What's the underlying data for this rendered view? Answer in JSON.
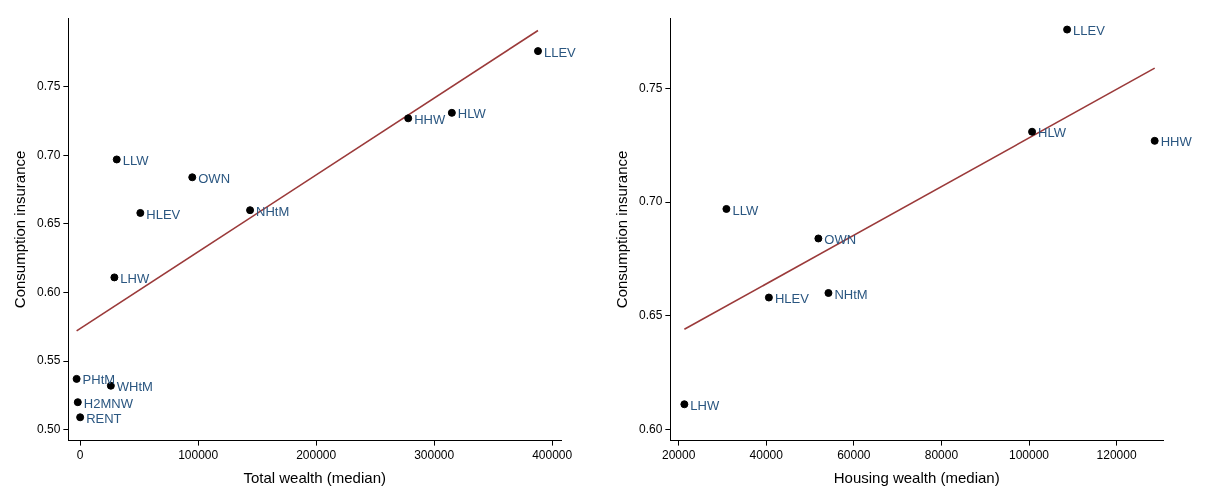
{
  "chart_data": [
    {
      "type": "scatter",
      "xlabel": "Total wealth (median)",
      "ylabel": "Consumption insurance",
      "xlim": [
        -10000,
        407500
      ],
      "ylim": [
        0.492,
        0.8
      ],
      "xticks": [
        0,
        100000,
        200000,
        300000,
        400000
      ],
      "yticks": [
        {
          "value": 0.5,
          "label": "0.50"
        },
        {
          "value": 0.55,
          "label": "0.55"
        },
        {
          "value": 0.6,
          "label": "0.60"
        },
        {
          "value": 0.65,
          "label": "0.65"
        },
        {
          "value": 0.7,
          "label": "0.70"
        },
        {
          "value": 0.75,
          "label": "0.75"
        }
      ],
      "grid": false,
      "series": [
        {
          "marker": "circle",
          "color": "#000000",
          "x": [
            388000,
            315000,
            278000,
            31000,
            95000,
            51000,
            144000,
            29000,
            -3000,
            26000,
            -2000,
            0
          ],
          "values": [
            0.776,
            0.731,
            0.727,
            0.697,
            0.684,
            0.658,
            0.66,
            0.611,
            0.537,
            0.532,
            0.52,
            0.509
          ]
        },
        {
          "type": "line",
          "color": "#9b3a3a",
          "x": [
            -3000,
            388000
          ],
          "values": [
            0.572,
            0.791
          ]
        }
      ],
      "annotations": [
        {
          "text": "LLEV",
          "x": 388000,
          "y": 0.776
        },
        {
          "text": "HLW",
          "x": 315000,
          "y": 0.731
        },
        {
          "text": "HHW",
          "x": 278000,
          "y": 0.727
        },
        {
          "text": "LLW",
          "x": 31000,
          "y": 0.697
        },
        {
          "text": "OWN",
          "x": 95000,
          "y": 0.684
        },
        {
          "text": "HLEV",
          "x": 51000,
          "y": 0.658
        },
        {
          "text": "NHtM",
          "x": 144000,
          "y": 0.66
        },
        {
          "text": "LHW",
          "x": 29000,
          "y": 0.611
        },
        {
          "text": "PHtM",
          "x": -3000,
          "y": 0.537
        },
        {
          "text": "WHtM",
          "x": 26000,
          "y": 0.532
        },
        {
          "text": "H2MNW",
          "x": -2000,
          "y": 0.52
        },
        {
          "text": "RENT",
          "x": 0,
          "y": 0.509
        }
      ]
    },
    {
      "type": "scatter",
      "xlabel": "Housing wealth (median)",
      "ylabel": "Consumption insurance",
      "xlim": [
        18100,
        130600
      ],
      "ylim": [
        0.595,
        0.781
      ],
      "xticks": [
        20000,
        40000,
        60000,
        80000,
        100000,
        120000
      ],
      "yticks": [
        {
          "value": 0.6,
          "label": "0.60"
        },
        {
          "value": 0.65,
          "label": "0.65"
        },
        {
          "value": 0.7,
          "label": "0.70"
        },
        {
          "value": 0.75,
          "label": "0.75"
        }
      ],
      "grid": false,
      "series": [
        {
          "marker": "circle",
          "color": "#000000",
          "x": [
            108700,
            100700,
            128700,
            30900,
            51900,
            54200,
            40600,
            21300
          ],
          "values": [
            0.776,
            0.731,
            0.727,
            0.697,
            0.684,
            0.66,
            0.658,
            0.611
          ]
        },
        {
          "type": "line",
          "color": "#9b3a3a",
          "x": [
            21300,
            128700
          ],
          "values": [
            0.644,
            0.759
          ]
        }
      ],
      "annotations": [
        {
          "text": "LLEV",
          "x": 108700,
          "y": 0.776
        },
        {
          "text": "HLW",
          "x": 100700,
          "y": 0.731
        },
        {
          "text": "HHW",
          "x": 128700,
          "y": 0.727
        },
        {
          "text": "LLW",
          "x": 30900,
          "y": 0.697
        },
        {
          "text": "OWN",
          "x": 51900,
          "y": 0.684
        },
        {
          "text": "NHtM",
          "x": 54200,
          "y": 0.66
        },
        {
          "text": "HLEV",
          "x": 40600,
          "y": 0.658
        },
        {
          "text": "LHW",
          "x": 21300,
          "y": 0.611
        }
      ]
    }
  ]
}
